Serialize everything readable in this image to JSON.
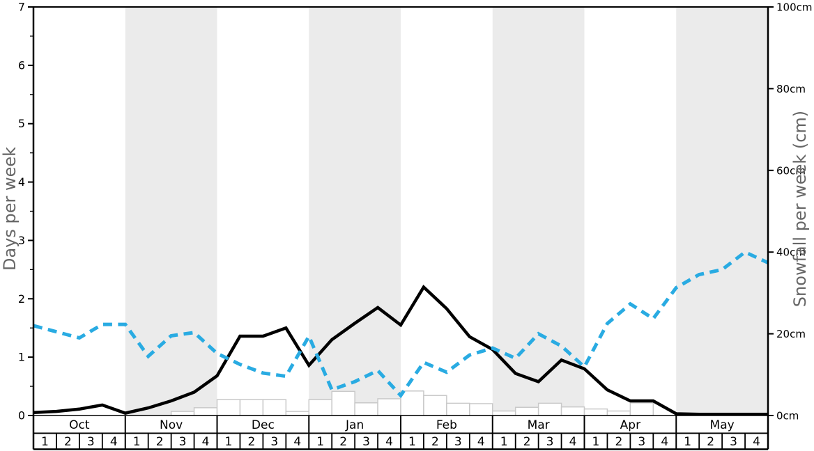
{
  "colors": {
    "background": "#ffffff",
    "shaded_band": "#ebebeb",
    "black_line": "#000000",
    "blue_dashed_line": "#29abe2",
    "bar_fill": "#ffffff",
    "bar_stroke": "#c9c9c9",
    "axis_line": "#000000",
    "tick_label": "#000000",
    "axis_title": "#666666",
    "table_line": "#000000"
  },
  "axes": {
    "left": {
      "title": "Days per week",
      "range": [
        0,
        7
      ],
      "major_tick_labels": [
        "0",
        "1",
        "2",
        "3",
        "4",
        "5",
        "6",
        "7"
      ],
      "minor_step": 0.5
    },
    "right": {
      "title": "Snowfall per week (cm)",
      "range": [
        0,
        100
      ],
      "major_tick_values": [
        0,
        20,
        40,
        60,
        80,
        100
      ],
      "major_tick_labels": [
        "0cm",
        "20cm",
        "40cm",
        "60cm",
        "80cm",
        "100cm"
      ]
    }
  },
  "chart_data": {
    "type": "line+bar",
    "months": [
      "Oct",
      "Nov",
      "Dec",
      "Jan",
      "Feb",
      "Mar",
      "Apr",
      "May"
    ],
    "weeks_per_month": [
      "1",
      "2",
      "3",
      "4"
    ],
    "shaded_month_indexes": [
      1,
      3,
      5,
      7
    ],
    "series": [
      {
        "name": "days-per-week-line",
        "style": "solid-black",
        "axis": "left",
        "unit": "days",
        "values": [
          0.05,
          0.07,
          0.11,
          0.18,
          0.04,
          0.13,
          0.25,
          0.4,
          0.68,
          1.36,
          1.36,
          1.5,
          0.86,
          1.3,
          1.58,
          1.85,
          1.55,
          2.2,
          1.83,
          1.35,
          1.13,
          0.72,
          0.58,
          0.95,
          0.8,
          0.44,
          0.25,
          0.25,
          0.03,
          0.02,
          0.02,
          0.02
        ],
        "edge_value": 0.02
      },
      {
        "name": "snowfall-per-week-line",
        "style": "dashed-blue",
        "axis": "right",
        "unit": "cm",
        "values": [
          22,
          20.5,
          19,
          22.3,
          22.3,
          14.5,
          19.5,
          20.3,
          15.2,
          12.5,
          10.4,
          9.6,
          19.4,
          6.3,
          8.3,
          11,
          4.9,
          13,
          10.6,
          14.8,
          16.5,
          14,
          20,
          17,
          11.9,
          22.5,
          27.3,
          23.7,
          31.3,
          34.5,
          35.7,
          40
        ],
        "edge_value": 37.4
      },
      {
        "name": "snowfall-histogram-bars",
        "style": "bar-outline",
        "axis": "right",
        "unit": "cm",
        "values": [
          0,
          0,
          0,
          0,
          0,
          0,
          1,
          1.9,
          3.9,
          3.9,
          3.9,
          1,
          3.9,
          5.9,
          3.1,
          4.1,
          6,
          4.9,
          3,
          2.9,
          1.1,
          2,
          3,
          2.1,
          1.6,
          1.1,
          3.1,
          0,
          0,
          0,
          0,
          0
        ]
      }
    ]
  }
}
